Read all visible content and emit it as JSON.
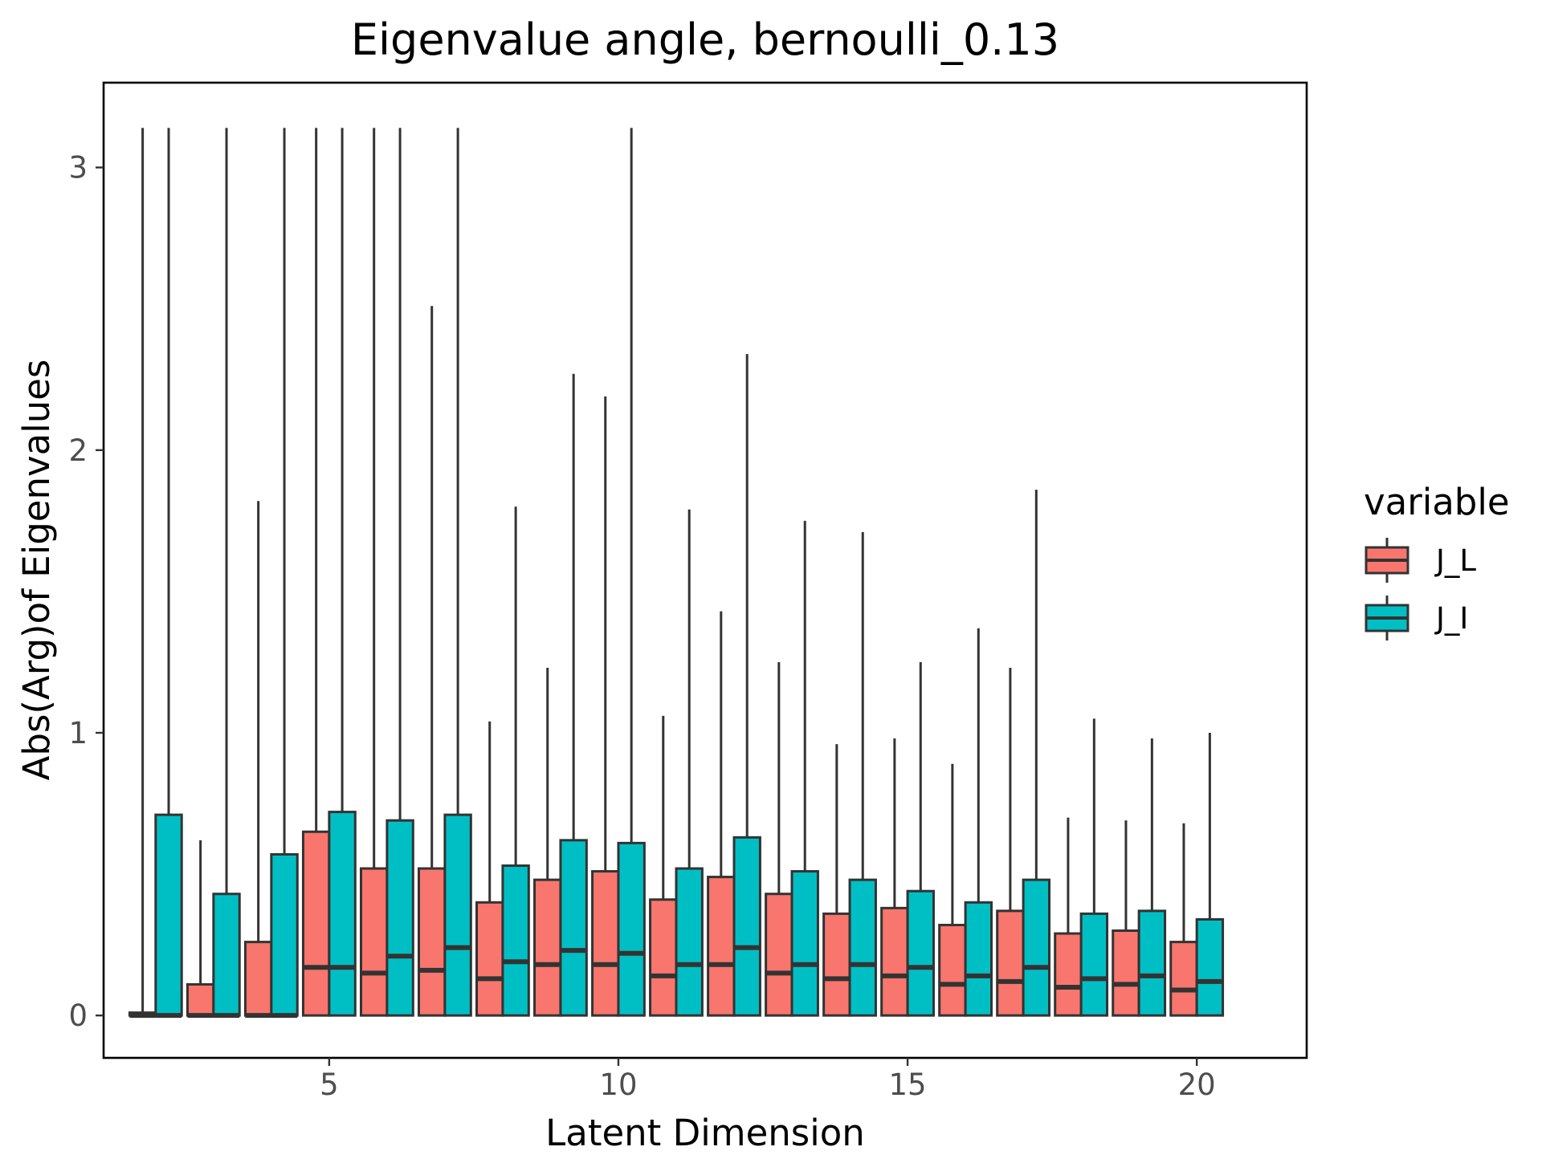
{
  "chart_data": {
    "type": "box",
    "title": "Eigenvalue angle,  bernoulli_0.13",
    "xlabel": "Latent Dimension",
    "ylabel": "Abs(Arg)of Eigenvalues",
    "xlim": [
      1.1,
      21.9
    ],
    "ylim": [
      -0.15,
      3.3
    ],
    "x_ticks": [
      5,
      10,
      15,
      20
    ],
    "y_ticks": [
      0,
      1,
      2,
      3
    ],
    "grid": false,
    "legend": {
      "title": "variable",
      "position": "right"
    },
    "categories": [
      2,
      3,
      4,
      5,
      6,
      7,
      8,
      9,
      10,
      11,
      12,
      13,
      14,
      15,
      16,
      17,
      18,
      19,
      20
    ],
    "series": [
      {
        "name": "J_L",
        "color": "#F8766D",
        "boxes": [
          {
            "x": 2,
            "q1": 0,
            "median": 0,
            "q3": 0.01,
            "max": 3.14
          },
          {
            "x": 3,
            "q1": 0,
            "median": 0,
            "q3": 0.11,
            "max": 0.62
          },
          {
            "x": 4,
            "q1": 0,
            "median": 0,
            "q3": 0.26,
            "max": 1.82
          },
          {
            "x": 5,
            "q1": 0,
            "median": 0.17,
            "q3": 0.65,
            "max": 3.14
          },
          {
            "x": 6,
            "q1": 0,
            "median": 0.15,
            "q3": 0.52,
            "max": 3.14
          },
          {
            "x": 7,
            "q1": 0,
            "median": 0.16,
            "q3": 0.52,
            "max": 2.51
          },
          {
            "x": 8,
            "q1": 0,
            "median": 0.13,
            "q3": 0.4,
            "max": 1.04
          },
          {
            "x": 9,
            "q1": 0,
            "median": 0.18,
            "q3": 0.48,
            "max": 1.23
          },
          {
            "x": 10,
            "q1": 0,
            "median": 0.18,
            "q3": 0.51,
            "max": 2.19
          },
          {
            "x": 11,
            "q1": 0,
            "median": 0.14,
            "q3": 0.41,
            "max": 1.06
          },
          {
            "x": 12,
            "q1": 0,
            "median": 0.18,
            "q3": 0.49,
            "max": 1.43
          },
          {
            "x": 13,
            "q1": 0,
            "median": 0.15,
            "q3": 0.43,
            "max": 1.25
          },
          {
            "x": 14,
            "q1": 0,
            "median": 0.13,
            "q3": 0.36,
            "max": 0.96
          },
          {
            "x": 15,
            "q1": 0,
            "median": 0.14,
            "q3": 0.38,
            "max": 0.98
          },
          {
            "x": 16,
            "q1": 0,
            "median": 0.11,
            "q3": 0.32,
            "max": 0.89
          },
          {
            "x": 17,
            "q1": 0,
            "median": 0.12,
            "q3": 0.37,
            "max": 1.23
          },
          {
            "x": 18,
            "q1": 0,
            "median": 0.1,
            "q3": 0.29,
            "max": 0.7
          },
          {
            "x": 19,
            "q1": 0,
            "median": 0.11,
            "q3": 0.3,
            "max": 0.69
          },
          {
            "x": 20,
            "q1": 0,
            "median": 0.09,
            "q3": 0.26,
            "max": 0.68
          }
        ]
      },
      {
        "name": "J_I",
        "color": "#00BFC4",
        "boxes": [
          {
            "x": 2,
            "q1": 0,
            "median": 0,
            "q3": 0.71,
            "max": 3.14
          },
          {
            "x": 3,
            "q1": 0,
            "median": 0,
            "q3": 0.43,
            "max": 3.14
          },
          {
            "x": 4,
            "q1": 0,
            "median": 0,
            "q3": 0.57,
            "max": 3.14
          },
          {
            "x": 5,
            "q1": 0,
            "median": 0.17,
            "q3": 0.72,
            "max": 3.14
          },
          {
            "x": 6,
            "q1": 0,
            "median": 0.21,
            "q3": 0.69,
            "max": 3.14
          },
          {
            "x": 7,
            "q1": 0,
            "median": 0.24,
            "q3": 0.71,
            "max": 3.14
          },
          {
            "x": 8,
            "q1": 0,
            "median": 0.19,
            "q3": 0.53,
            "max": 1.8
          },
          {
            "x": 9,
            "q1": 0,
            "median": 0.23,
            "q3": 0.62,
            "max": 2.27
          },
          {
            "x": 10,
            "q1": 0,
            "median": 0.22,
            "q3": 0.61,
            "max": 3.14
          },
          {
            "x": 11,
            "q1": 0,
            "median": 0.18,
            "q3": 0.52,
            "max": 1.79
          },
          {
            "x": 12,
            "q1": 0,
            "median": 0.24,
            "q3": 0.63,
            "max": 2.34
          },
          {
            "x": 13,
            "q1": 0,
            "median": 0.18,
            "q3": 0.51,
            "max": 1.75
          },
          {
            "x": 14,
            "q1": 0,
            "median": 0.18,
            "q3": 0.48,
            "max": 1.71
          },
          {
            "x": 15,
            "q1": 0,
            "median": 0.17,
            "q3": 0.44,
            "max": 1.25
          },
          {
            "x": 16,
            "q1": 0,
            "median": 0.14,
            "q3": 0.4,
            "max": 1.37
          },
          {
            "x": 17,
            "q1": 0,
            "median": 0.17,
            "q3": 0.48,
            "max": 1.86
          },
          {
            "x": 18,
            "q1": 0,
            "median": 0.13,
            "q3": 0.36,
            "max": 1.05
          },
          {
            "x": 19,
            "q1": 0,
            "median": 0.14,
            "q3": 0.37,
            "max": 0.98
          },
          {
            "x": 20,
            "q1": 0,
            "median": 0.12,
            "q3": 0.34,
            "max": 1.0
          }
        ]
      }
    ]
  }
}
